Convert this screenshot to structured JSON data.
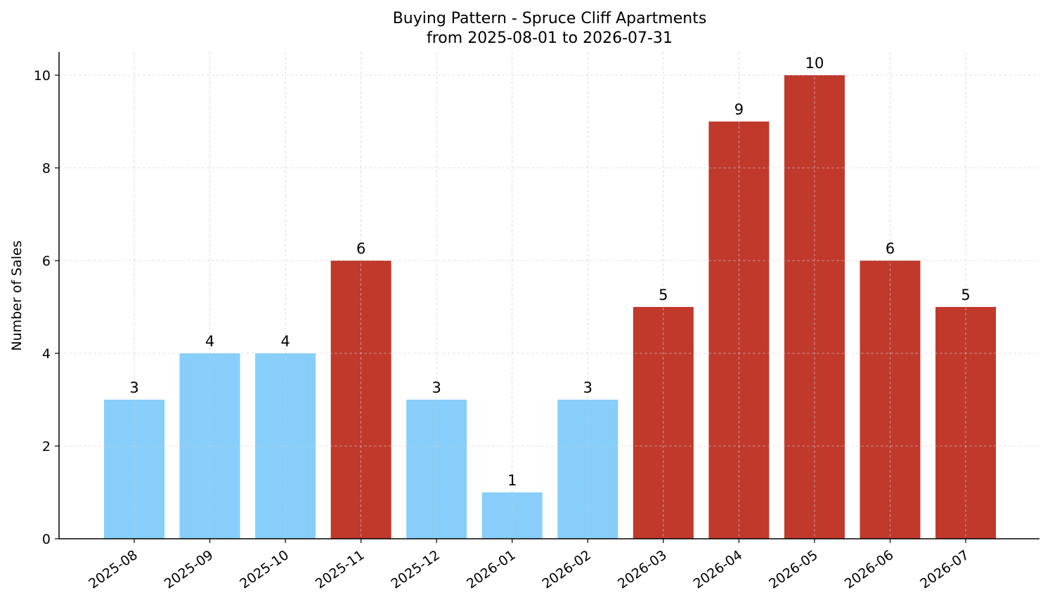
{
  "chart_data": {
    "type": "bar",
    "title": "Buying Pattern - Spruce Cliff Apartments",
    "subtitle": "from 2025-08-01 to 2026-07-31",
    "xlabel": "",
    "ylabel": "Number of Sales",
    "ylim": [
      0,
      10.5
    ],
    "yticks": [
      0,
      2,
      4,
      6,
      8,
      10
    ],
    "grid": true,
    "categories": [
      "2025-08",
      "2025-09",
      "2025-10",
      "2025-11",
      "2025-12",
      "2026-01",
      "2026-02",
      "2026-03",
      "2026-04",
      "2026-05",
      "2026-06",
      "2026-07"
    ],
    "values": [
      3,
      4,
      4,
      6,
      3,
      1,
      3,
      5,
      9,
      10,
      6,
      5
    ],
    "colors": {
      "low": "#87CEFA",
      "high": "#C0392B"
    },
    "bar_colors": [
      "low",
      "low",
      "low",
      "high",
      "low",
      "low",
      "low",
      "high",
      "high",
      "high",
      "high",
      "high"
    ]
  }
}
